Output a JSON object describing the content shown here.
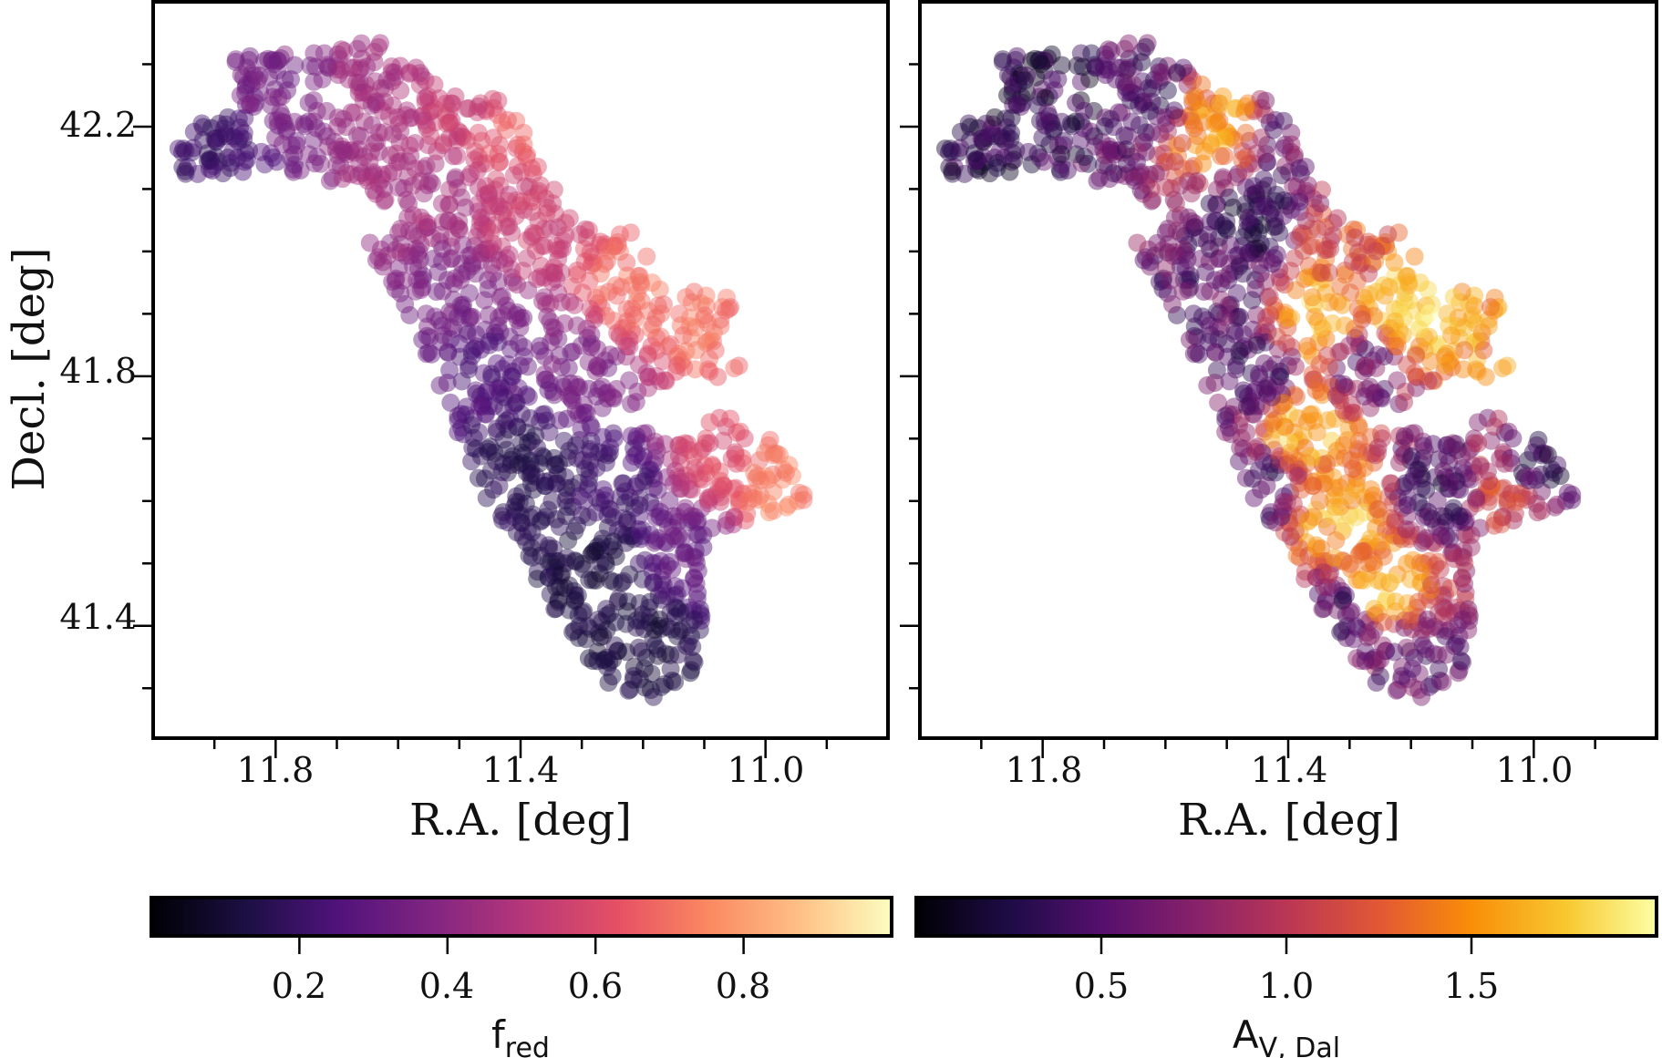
{
  "chart_data": [
    {
      "type": "scatter",
      "panel": "left",
      "xlabel": "R.A. [deg]",
      "ylabel": "Decl. [deg]",
      "xlim": [
        12.0,
        10.8
      ],
      "ylim": [
        41.22,
        42.4
      ],
      "x_ticks": [
        11.8,
        11.4,
        11.0
      ],
      "y_ticks": [
        41.4,
        41.8,
        42.2
      ],
      "x_tick_labels": [
        "11.8",
        "11.4",
        "11.0"
      ],
      "y_tick_labels": [
        "41.4",
        "41.8",
        "42.2"
      ],
      "color_variable": "f_red",
      "colormap": "magma",
      "colorbar": {
        "label_main": "f",
        "label_sub": "red",
        "range": [
          0.0,
          1.0
        ],
        "ticks": [
          0.2,
          0.4,
          0.6,
          0.8
        ],
        "tick_labels": [
          "0.2",
          "0.4",
          "0.6",
          "0.8"
        ],
        "placement": "bottom"
      },
      "regions": [
        {
          "x": 11.78,
          "y": 42.27,
          "value": 0.35
        },
        {
          "x": 11.63,
          "y": 42.28,
          "value": 0.45
        },
        {
          "x": 11.5,
          "y": 42.23,
          "value": 0.55
        },
        {
          "x": 11.4,
          "y": 42.2,
          "value": 0.65
        },
        {
          "x": 11.92,
          "y": 42.16,
          "value": 0.2
        },
        {
          "x": 11.55,
          "y": 42.08,
          "value": 0.45
        },
        {
          "x": 11.4,
          "y": 42.04,
          "value": 0.55
        },
        {
          "x": 11.22,
          "y": 41.93,
          "value": 0.7
        },
        {
          "x": 11.5,
          "y": 41.95,
          "value": 0.35
        },
        {
          "x": 11.08,
          "y": 41.88,
          "value": 0.7
        },
        {
          "x": 11.45,
          "y": 41.8,
          "value": 0.25
        },
        {
          "x": 11.3,
          "y": 41.82,
          "value": 0.35
        },
        {
          "x": 11.4,
          "y": 41.66,
          "value": 0.15
        },
        {
          "x": 11.25,
          "y": 41.62,
          "value": 0.2
        },
        {
          "x": 11.08,
          "y": 41.67,
          "value": 0.6
        },
        {
          "x": 10.98,
          "y": 41.63,
          "value": 0.72
        },
        {
          "x": 11.28,
          "y": 41.5,
          "value": 0.12
        },
        {
          "x": 11.2,
          "y": 41.38,
          "value": 0.12
        },
        {
          "x": 11.13,
          "y": 41.52,
          "value": 0.3
        }
      ]
    },
    {
      "type": "scatter",
      "panel": "right",
      "xlabel": "R.A. [deg]",
      "ylabel": "",
      "xlim": [
        12.0,
        10.8
      ],
      "ylim": [
        41.22,
        42.4
      ],
      "x_ticks": [
        11.8,
        11.4,
        11.0
      ],
      "y_ticks": [
        41.4,
        41.8,
        42.2
      ],
      "x_tick_labels": [
        "11.8",
        "11.4",
        "11.0"
      ],
      "color_variable": "A_V,Dal",
      "colormap": "inferno",
      "colorbar": {
        "label_main": "A",
        "label_sub": "V, Dal",
        "range": [
          0.0,
          2.0
        ],
        "ticks": [
          0.5,
          1.0,
          1.5
        ],
        "tick_labels": [
          "0.5",
          "1.0",
          "1.5"
        ],
        "placement": "bottom"
      },
      "regions": [
        {
          "x": 11.78,
          "y": 42.27,
          "value": 0.3
        },
        {
          "x": 11.63,
          "y": 42.25,
          "value": 0.45
        },
        {
          "x": 11.52,
          "y": 42.2,
          "value": 1.5
        },
        {
          "x": 11.4,
          "y": 42.18,
          "value": 0.6
        },
        {
          "x": 11.92,
          "y": 42.16,
          "value": 0.35
        },
        {
          "x": 11.45,
          "y": 42.05,
          "value": 0.25
        },
        {
          "x": 11.32,
          "y": 42.0,
          "value": 1.2
        },
        {
          "x": 11.5,
          "y": 41.95,
          "value": 0.5
        },
        {
          "x": 11.35,
          "y": 41.9,
          "value": 1.7
        },
        {
          "x": 11.2,
          "y": 41.9,
          "value": 1.8
        },
        {
          "x": 11.1,
          "y": 41.88,
          "value": 1.5
        },
        {
          "x": 11.45,
          "y": 41.8,
          "value": 0.4
        },
        {
          "x": 11.27,
          "y": 41.82,
          "value": 0.6
        },
        {
          "x": 11.38,
          "y": 41.72,
          "value": 1.6
        },
        {
          "x": 11.45,
          "y": 41.62,
          "value": 0.4
        },
        {
          "x": 11.32,
          "y": 41.58,
          "value": 1.6
        },
        {
          "x": 11.15,
          "y": 41.62,
          "value": 0.4
        },
        {
          "x": 11.05,
          "y": 41.62,
          "value": 1.2
        },
        {
          "x": 11.0,
          "y": 41.65,
          "value": 0.35
        },
        {
          "x": 11.25,
          "y": 41.45,
          "value": 1.7
        },
        {
          "x": 11.3,
          "y": 41.42,
          "value": 0.4
        },
        {
          "x": 11.18,
          "y": 41.35,
          "value": 0.5
        }
      ]
    }
  ]
}
